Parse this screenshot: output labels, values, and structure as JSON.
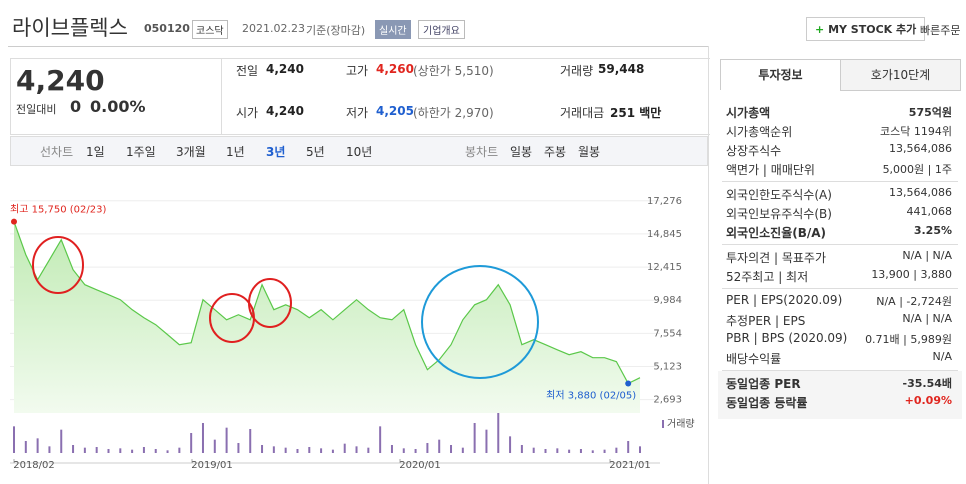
{
  "header": {
    "title": "라이브플렉스",
    "code": "050120",
    "market": "코스닥",
    "date": "2021.02.23",
    "basis": "기준(장마감)",
    "realtime": "실시간",
    "overview": "기업개요",
    "mystock": "MY STOCK 추가",
    "quick": "빠른주문"
  },
  "price": {
    "current": "4,240",
    "change_label": "전일대비",
    "change": "0",
    "change_pct": "0.00%"
  },
  "quote": {
    "rows": [
      [
        {
          "label": "전일",
          "value": "4,240"
        },
        {
          "label": "고가",
          "value": "4,260",
          "extra": "(상한가 5,510)"
        },
        {
          "label": "거래량",
          "value": "59,448"
        }
      ],
      [
        {
          "label": "시가",
          "value": "4,240"
        },
        {
          "label": "저가",
          "value": "4,205",
          "extra": "(하한가 2,970)"
        },
        {
          "label": "거래대금",
          "value": "251 백만"
        }
      ]
    ]
  },
  "tabs": {
    "line_label": "선차트",
    "periods": [
      "1일",
      "1주일",
      "3개월",
      "1년",
      "3년",
      "5년",
      "10년"
    ],
    "selected": 4,
    "candle_label": "봉차트",
    "candles": [
      "일봉",
      "주봉",
      "월봉"
    ]
  },
  "chart": {
    "type": "area",
    "values": [
      15750,
      13320,
      11490,
      12950,
      14420,
      12220,
      11120,
      10750,
      10390,
      10020,
      9290,
      8700,
      8190,
      7460,
      6720,
      6870,
      10020,
      9290,
      8550,
      8920,
      8550,
      11120,
      9290,
      9650,
      9290,
      8700,
      9290,
      8550,
      9290,
      10020,
      9290,
      8700,
      8550,
      9290,
      6720,
      4890,
      5620,
      6720,
      8550,
      9650,
      10020,
      11120,
      9650,
      6720,
      7090,
      6720,
      6350,
      5990,
      6210,
      5770,
      5770,
      5480,
      3880,
      4300
    ],
    "volume": [
      40,
      18,
      22,
      10,
      35,
      12,
      8,
      9,
      6,
      7,
      5,
      9,
      6,
      4,
      8,
      30,
      45,
      20,
      38,
      15,
      36,
      12,
      10,
      8,
      6,
      9,
      7,
      5,
      14,
      10,
      8,
      40,
      12,
      7,
      6,
      15,
      20,
      12,
      8,
      45,
      35,
      60,
      25,
      12,
      8,
      6,
      7,
      5,
      6,
      4,
      5,
      8,
      18,
      10
    ],
    "volume_label": "거래량",
    "color": "#5bc84a",
    "ylim": [
      2300,
      17700
    ],
    "yticks": [
      {
        "value": 2693,
        "label": "2,693"
      },
      {
        "value": 5123,
        "label": "5,123"
      },
      {
        "value": 7554,
        "label": "7,554"
      },
      {
        "value": 9984,
        "label": "9,984"
      },
      {
        "value": 12415,
        "label": "12,415"
      },
      {
        "value": 14845,
        "label": "14,845"
      },
      {
        "value": 17276,
        "label": "17,276"
      }
    ],
    "xlabels": [
      "2018/02",
      "2019/01",
      "2020/01",
      "2021/01"
    ],
    "high_label": "최고 15,750 (02/23)",
    "low_label": "최저 3,880 (02/05)"
  },
  "side": {
    "tabs": [
      "투자정보",
      "호가10단계"
    ],
    "sections": [
      [
        [
          "시가총액",
          "575억원"
        ],
        [
          "시가총액순위",
          "코스닥 1194위"
        ],
        [
          "상장주식수",
          "13,564,086"
        ],
        [
          "액면가 | 매매단위",
          "5,000원 | 1주"
        ]
      ],
      [
        [
          "외국인한도주식수(A)",
          "13,564,086"
        ],
        [
          "외국인보유주식수(B)",
          "441,068"
        ],
        [
          "외국인소진율(B/A)",
          "3.25%"
        ]
      ],
      [
        [
          "투자의견 | 목표주가",
          "N/A | N/A"
        ],
        [
          "52주최고 | 최저",
          "13,900 | 3,880"
        ]
      ],
      [
        [
          "PER | EPS(2020.09)",
          "N/A | -2,724원"
        ],
        [
          "추정PER | EPS",
          "N/A | N/A"
        ],
        [
          "PBR | BPS (2020.09)",
          "0.71배 | 5,989원"
        ],
        [
          "배당수익률",
          "N/A"
        ]
      ],
      [
        [
          "동일업종 PER",
          "-35.54배"
        ],
        [
          "동일업종 등락률",
          "+0.09%"
        ]
      ]
    ]
  }
}
